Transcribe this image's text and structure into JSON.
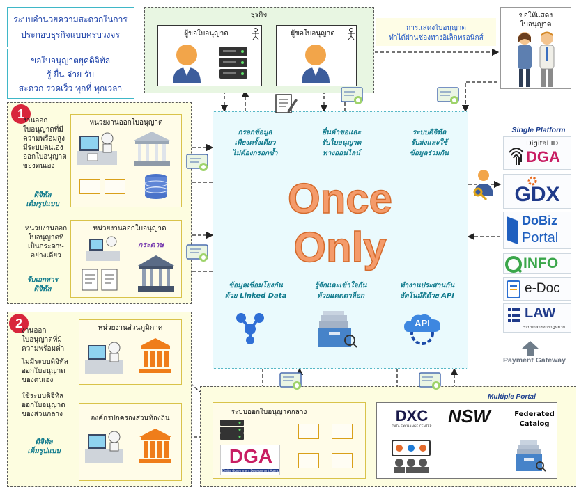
{
  "header_box": {
    "line1": "ระบบอำนวยความสะดวกในการ",
    "line2": "ประกอบธุรกิจแบบครบวงจร"
  },
  "slogan_box": {
    "line1": "ขอใบอนุญาตยุคดิจิทัล",
    "line2": "รู้  ยื่น  จ่าย  รับ",
    "line3": "สะดวก รวดเร็ว ทุกที่ ทุกเวลา"
  },
  "business": {
    "title": "ธุรกิจ",
    "applicant1": "ผู้ขอใบอนุญาต",
    "applicant2": "ผู้ขอใบอนุญาต"
  },
  "electronic_note": {
    "line1": "การแสดงใบอนุญาต",
    "line2": "ทำได้ผ่านช่องทางอิเล็กทรอนิกส์"
  },
  "display_box": {
    "line1": "ขอให้แสดง",
    "line2": "ใบอนุญาต"
  },
  "section1": {
    "badge": "1",
    "text_a": [
      "งานออก",
      "ใบอนุญาตที่มี",
      "ความพร้อมสูง",
      "มีระบบตนเอง",
      "ออกใบอนุญาต",
      "ของตนเอง"
    ],
    "tag_a": [
      "ดิจิทัล",
      "เต็มรูปแบบ"
    ],
    "text_b": [
      "หน่วยงานออก",
      "ใบอนุญาตที่",
      "เป็นกระดาษ",
      "อย่างเดียว"
    ],
    "tag_b": [
      "รับเอกสาร",
      "ดิจิทัล"
    ],
    "agency_a": "หน่วยงานออกใบอนุญาต",
    "agency_b": "หน่วยงานออกใบอนุญาต",
    "paper_tag": "กระดาษ"
  },
  "section2": {
    "badge": "2",
    "text_a": [
      "งานออก",
      "ใบอนุญาตที่มี",
      "ความพร้อมต่ำ",
      "ไม่มีระบบดิจิทัล",
      "ออกใบอนุญาต",
      "ของตนเอง",
      "ใช้ระบบดิจิทัล",
      "ออกใบอนุญาต",
      "ของส่วนกลาง"
    ],
    "tag_a": [
      "ดิจิทัล",
      "เต็มรูปแบบ"
    ],
    "regional": "หน่วยงานส่วนภูมิภาค",
    "local": "องค์กรปกครองส่วนท้องถิ่น"
  },
  "center": {
    "title_line1": "Once",
    "title_line2": "Only",
    "feature1": [
      "กรอกข้อมูล",
      "เพียงครั้งเดียว",
      "ไม่ต้องกรอกซ้ำ"
    ],
    "feature2": [
      "ยื่นคำขอและ",
      "รับใบอนุญาต",
      "ทางออนไลน์"
    ],
    "feature3": [
      "ระบบดิจิทัล",
      "รับส่งและใช้",
      "ข้อมูลร่วมกัน"
    ],
    "feature4": [
      "ข้อมูลเชื่อมโยงกัน",
      "ด้วย Linked Data"
    ],
    "feature5": [
      "รู้จักและเข้าใจกัน",
      "ด้วยแคตตาล็อก"
    ],
    "feature6": [
      "ทำงานประสานกัน",
      "อัตโนมัติด้วย API"
    ],
    "api_label": "API"
  },
  "platform": {
    "title": "Single Platform",
    "digital_id_top": "Digital ID",
    "digital_id_main": "DGA",
    "gdx": "GDX",
    "dobiz_top": "DoBiz",
    "dobiz_bottom": "Portal",
    "info": "INFO",
    "edoc": "e-Doc",
    "law": "LAW",
    "law_sub": "ระบบกลางทางกฎหมาย",
    "payment": "Payment Gateway"
  },
  "central_system": {
    "title": "ระบบออกใบอนุญาตกลาง",
    "dga": "DGA",
    "dga_sub": "Digital Government Development Agency"
  },
  "multiple_portal": {
    "title": "Multiple Portal",
    "dxc": "DXC",
    "dxc_sub": "DATA EXCHANGE CENTER",
    "nsw": "NSW",
    "federated_line1": "Federated",
    "federated_line2": "Catalog"
  },
  "colors": {
    "once_only_fill": "#f49b6a",
    "badge_red": "#d8263c",
    "dga_magenta": "#c81e63",
    "gdx_blue": "#1f3a8a",
    "teal": "#0f7a8c"
  }
}
